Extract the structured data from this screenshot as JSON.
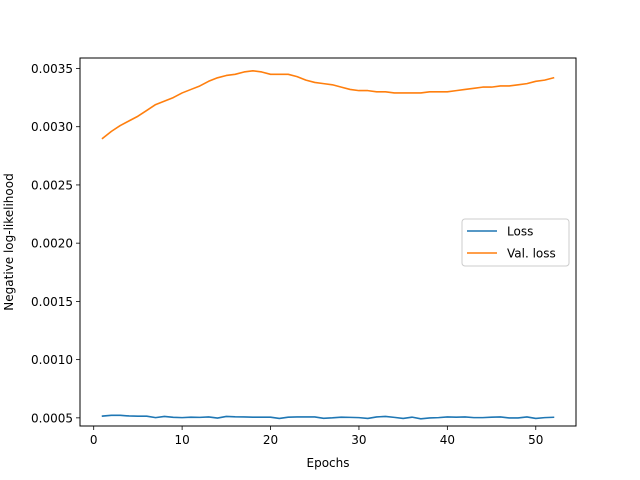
{
  "chart_data": {
    "type": "line",
    "xlabel": "Epochs",
    "ylabel": "Negative log-likelihood",
    "xlim": [
      -1.55,
      54.55
    ],
    "ylim": [
      0.00043,
      0.00359
    ],
    "xticks": [
      0,
      10,
      20,
      30,
      40,
      50
    ],
    "yticks": [
      0.0005,
      0.001,
      0.0015,
      0.002,
      0.0025,
      0.003,
      0.0035
    ],
    "ytick_labels": [
      "0.0005",
      "0.0010",
      "0.0015",
      "0.0020",
      "0.0025",
      "0.0030",
      "0.0035"
    ],
    "grid": false,
    "legend_position": "center-right",
    "x": [
      1,
      2,
      3,
      4,
      5,
      6,
      7,
      8,
      9,
      10,
      11,
      12,
      13,
      14,
      15,
      16,
      17,
      18,
      19,
      20,
      21,
      22,
      23,
      24,
      25,
      26,
      27,
      28,
      29,
      30,
      31,
      32,
      33,
      34,
      35,
      36,
      37,
      38,
      39,
      40,
      41,
      42,
      43,
      44,
      45,
      46,
      47,
      48,
      49,
      50,
      51,
      52
    ],
    "series": [
      {
        "name": "Loss",
        "color": "#1f77b4",
        "values": [
          0.000515,
          0.000522,
          0.000522,
          0.000516,
          0.000514,
          0.000514,
          0.000502,
          0.000512,
          0.000505,
          0.000502,
          0.000506,
          0.000504,
          0.000508,
          0.000498,
          0.000512,
          0.000509,
          0.000508,
          0.000506,
          0.000506,
          0.000506,
          0.000495,
          0.000506,
          0.000508,
          0.000508,
          0.000508,
          0.000496,
          0.0005,
          0.000506,
          0.000504,
          0.000502,
          0.000495,
          0.000508,
          0.000512,
          0.000504,
          0.000495,
          0.000506,
          0.000492,
          0.000499,
          0.000502,
          0.000508,
          0.000506,
          0.000508,
          0.000502,
          0.000502,
          0.000506,
          0.000508,
          0.000499,
          0.000499,
          0.000508,
          0.000495,
          0.000502,
          0.000505
        ]
      },
      {
        "name": "Val. loss",
        "color": "#ff7f0e",
        "values": [
          0.0029,
          0.00296,
          0.00301,
          0.00305,
          0.00309,
          0.00314,
          0.00319,
          0.00322,
          0.00325,
          0.00329,
          0.00332,
          0.00335,
          0.00339,
          0.00342,
          0.00344,
          0.00345,
          0.00347,
          0.00348,
          0.00347,
          0.00345,
          0.00345,
          0.00345,
          0.00343,
          0.0034,
          0.00338,
          0.00337,
          0.00336,
          0.00334,
          0.00332,
          0.00331,
          0.00331,
          0.0033,
          0.0033,
          0.00329,
          0.00329,
          0.00329,
          0.00329,
          0.0033,
          0.0033,
          0.0033,
          0.00331,
          0.00332,
          0.00333,
          0.00334,
          0.00334,
          0.00335,
          0.00335,
          0.00336,
          0.00337,
          0.00339,
          0.0034,
          0.00342
        ]
      }
    ]
  }
}
